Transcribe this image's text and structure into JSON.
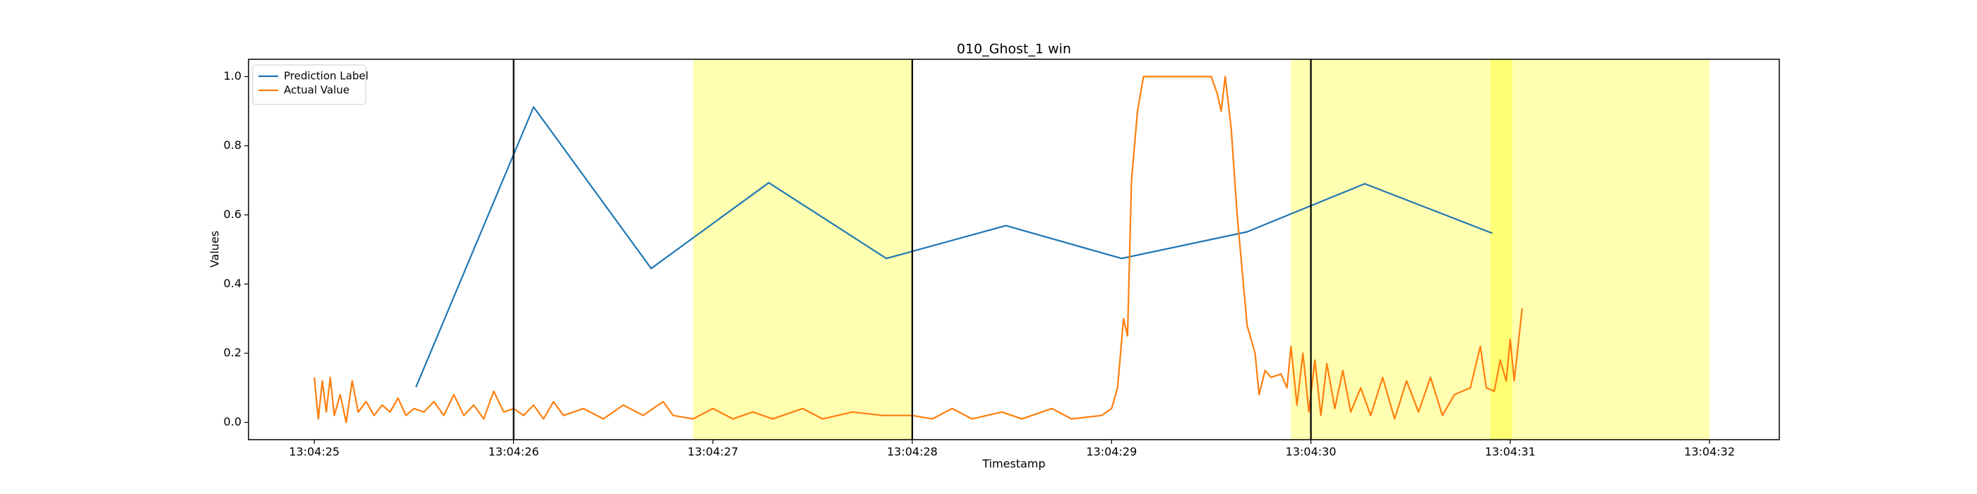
{
  "chart_data": {
    "type": "line",
    "title": "010_Ghost_1 win",
    "x_label": "Timestamp",
    "y_label": "Values",
    "xlim": [
      "13:04:24.67",
      "13:04:32.35"
    ],
    "ylim": [
      -0.05,
      1.05
    ],
    "xticks": [
      "13:04:25",
      "13:04:26",
      "13:04:27",
      "13:04:28",
      "13:04:29",
      "13:04:30",
      "13:04:31",
      "13:04:32"
    ],
    "yticks": [
      {
        "value": 0,
        "label": "0.0"
      },
      {
        "value": 0.2,
        "label": "0.2"
      },
      {
        "value": 0.4,
        "label": "0.4"
      },
      {
        "value": 0.6,
        "label": "0.6"
      },
      {
        "value": 0.8,
        "label": "0.8"
      },
      {
        "value": 1,
        "label": "1.0"
      }
    ],
    "legend": "upper left",
    "vlines": {
      "color": "#000000",
      "x": [
        "13:04:26",
        "13:04:28",
        "13:04:30"
      ]
    },
    "spans": [
      {
        "start": "13:04:26.90",
        "end": "13:04:28.00",
        "color": "#ffff00",
        "opacity": 0.3
      },
      {
        "start": "13:04:29.90",
        "end": "13:04:32.00",
        "color": "#ffff00",
        "opacity": 0.3
      },
      {
        "start": "13:04:30.90",
        "end": "13:04:31.01",
        "color": "#ffff00",
        "opacity": 0.35
      }
    ],
    "series": [
      {
        "name": "Prediction Label",
        "color": "#1f77b4",
        "x": [
          "13:04:25.51",
          "13:04:26.10",
          "13:04:26.69",
          "13:04:27.28",
          "13:04:27.87",
          "13:04:28.47",
          "13:04:29.05",
          "13:04:29.68",
          "13:04:30.27",
          "13:04:30.91"
        ],
        "values": [
          0.102,
          0.912,
          0.445,
          0.693,
          0.474,
          0.569,
          0.474,
          0.551,
          0.69,
          0.547
        ]
      },
      {
        "name": "Actual Value",
        "color": "#ff7f0e",
        "x": [
          "13:04:25.00",
          "13:04:25.02",
          "13:04:25.04",
          "13:04:25.06",
          "13:04:25.08",
          "13:04:25.10",
          "13:04:25.13",
          "13:04:25.16",
          "13:04:25.19",
          "13:04:25.22",
          "13:04:25.26",
          "13:04:25.30",
          "13:04:25.34",
          "13:04:25.38",
          "13:04:25.42",
          "13:04:25.46",
          "13:04:25.50",
          "13:04:25.55",
          "13:04:25.60",
          "13:04:25.65",
          "13:04:25.70",
          "13:04:25.75",
          "13:04:25.80",
          "13:04:25.85",
          "13:04:25.90",
          "13:04:25.95",
          "13:04:26.00",
          "13:04:26.05",
          "13:04:26.10",
          "13:04:26.15",
          "13:04:26.20",
          "13:04:26.25",
          "13:04:26.35",
          "13:04:26.45",
          "13:04:26.55",
          "13:04:26.65",
          "13:04:26.75",
          "13:04:26.80",
          "13:04:26.90",
          "13:04:27.00",
          "13:04:27.10",
          "13:04:27.20",
          "13:04:27.30",
          "13:04:27.45",
          "13:04:27.55",
          "13:04:27.70",
          "13:04:27.85",
          "13:04:28.00",
          "13:04:28.10",
          "13:04:28.20",
          "13:04:28.30",
          "13:04:28.45",
          "13:04:28.55",
          "13:04:28.70",
          "13:04:28.80",
          "13:04:28.95",
          "13:04:29.00",
          "13:04:29.03",
          "13:04:29.06",
          "13:04:29.08",
          "13:04:29.10",
          "13:04:29.13",
          "13:04:29.16",
          "13:04:29.30",
          "13:04:29.50",
          "13:04:29.53",
          "13:04:29.55",
          "13:04:29.57",
          "13:04:29.60",
          "13:04:29.63",
          "13:04:29.68",
          "13:04:29.72",
          "13:04:29.74",
          "13:04:29.77",
          "13:04:29.80",
          "13:04:29.85",
          "13:04:29.88",
          "13:04:29.90",
          "13:04:29.93",
          "13:04:29.96",
          "13:04:29.99",
          "13:04:30.02",
          "13:04:30.05",
          "13:04:30.08",
          "13:04:30.12",
          "13:04:30.16",
          "13:04:30.20",
          "13:04:30.25",
          "13:04:30.30",
          "13:04:30.36",
          "13:04:30.42",
          "13:04:30.48",
          "13:04:30.54",
          "13:04:30.60",
          "13:04:30.66",
          "13:04:30.72",
          "13:04:30.80",
          "13:04:30.85",
          "13:04:30.88",
          "13:04:30.92",
          "13:04:30.95",
          "13:04:30.98",
          "13:04:31.00",
          "13:04:31.02",
          "13:04:31.06"
        ],
        "values": [
          0.13,
          0.01,
          0.12,
          0.03,
          0.13,
          0.02,
          0.08,
          0.0,
          0.12,
          0.03,
          0.06,
          0.02,
          0.05,
          0.03,
          0.07,
          0.02,
          0.04,
          0.03,
          0.06,
          0.02,
          0.08,
          0.02,
          0.05,
          0.01,
          0.09,
          0.03,
          0.04,
          0.02,
          0.05,
          0.01,
          0.06,
          0.02,
          0.04,
          0.01,
          0.05,
          0.02,
          0.06,
          0.02,
          0.01,
          0.04,
          0.01,
          0.03,
          0.01,
          0.04,
          0.01,
          0.03,
          0.02,
          0.02,
          0.01,
          0.04,
          0.01,
          0.03,
          0.01,
          0.04,
          0.01,
          0.02,
          0.04,
          0.1,
          0.3,
          0.25,
          0.7,
          0.9,
          1.0,
          1.0,
          1.0,
          0.95,
          0.9,
          1.0,
          0.85,
          0.6,
          0.28,
          0.2,
          0.08,
          0.15,
          0.13,
          0.14,
          0.1,
          0.22,
          0.05,
          0.2,
          0.03,
          0.18,
          0.02,
          0.17,
          0.04,
          0.15,
          0.03,
          0.1,
          0.02,
          0.13,
          0.01,
          0.12,
          0.03,
          0.13,
          0.02,
          0.08,
          0.1,
          0.22,
          0.1,
          0.09,
          0.18,
          0.12,
          0.24,
          0.12,
          0.33
        ]
      }
    ]
  }
}
